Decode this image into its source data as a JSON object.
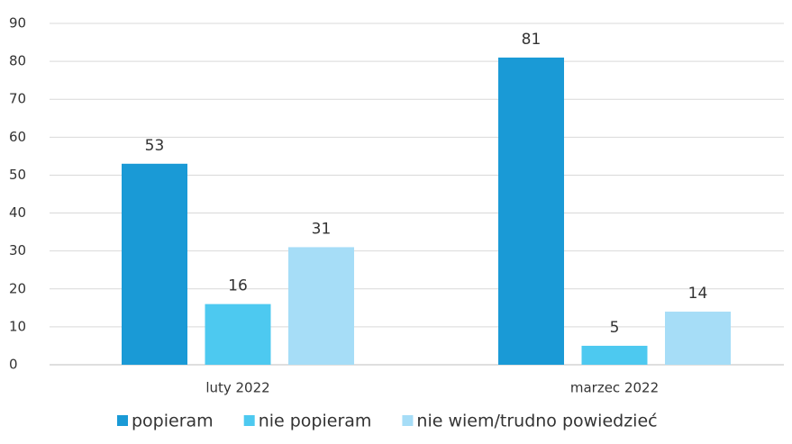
{
  "chart_data": {
    "type": "bar",
    "categories": [
      "luty 2022",
      "marzec 2022"
    ],
    "series": [
      {
        "name": "popieram",
        "color": "#1a9ad6",
        "values": [
          53,
          81
        ]
      },
      {
        "name": "nie popieram",
        "color": "#4dc9f0",
        "values": [
          16,
          5
        ]
      },
      {
        "name": "nie wiem/trudno powiedzieć",
        "color": "#a6ddf7",
        "values": [
          31,
          14
        ]
      }
    ],
    "ylim": [
      0,
      90
    ],
    "yticks": [
      0,
      10,
      20,
      30,
      40,
      50,
      60,
      70,
      80,
      90
    ],
    "grid": true,
    "legend": "bottom"
  }
}
